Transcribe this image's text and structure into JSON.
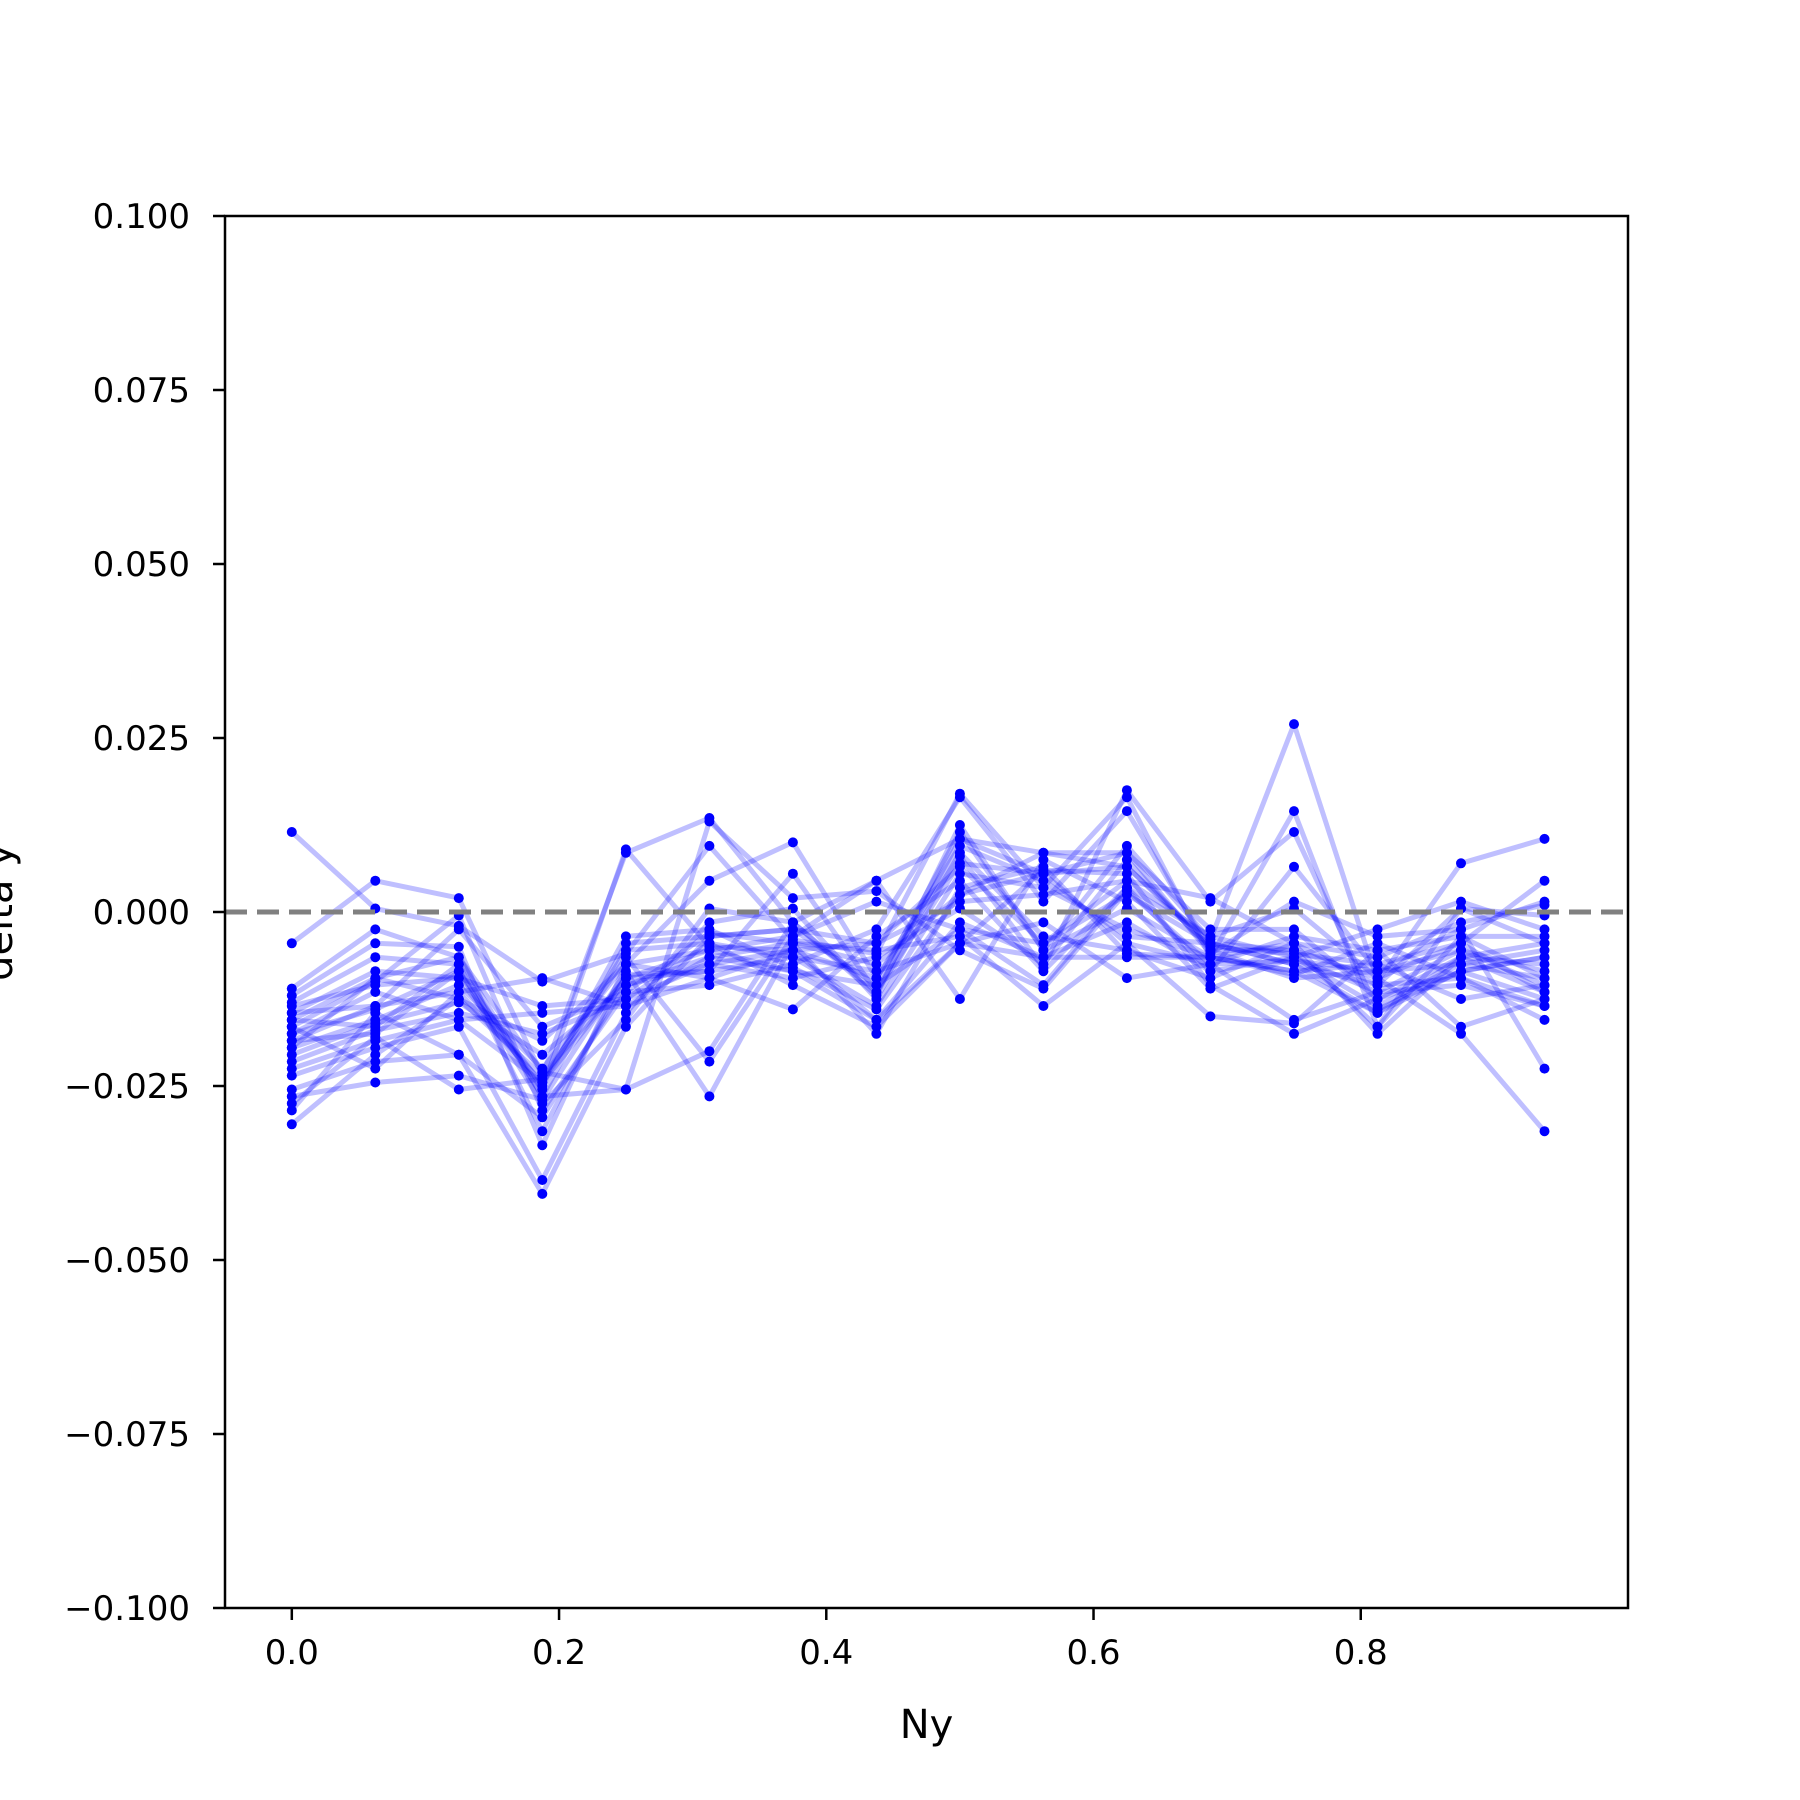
{
  "chart_data": {
    "type": "line",
    "title": "",
    "xlabel": "Ny",
    "ylabel": "delta y",
    "xlim": [
      -0.05,
      1.0
    ],
    "ylim": [
      -0.1,
      0.1
    ],
    "xticks": [
      0.0,
      0.2,
      0.4,
      0.6,
      0.8
    ],
    "xtick_labels": [
      "0.0",
      "0.2",
      "0.4",
      "0.6",
      "0.8"
    ],
    "yticks": [
      -0.1,
      -0.075,
      -0.05,
      -0.025,
      0.0,
      0.025,
      0.05,
      0.075,
      0.1
    ],
    "ytick_labels": [
      "−0.100",
      "−0.075",
      "−0.050",
      "−0.025",
      "0.000",
      "0.025",
      "0.050",
      "0.075",
      "0.100"
    ],
    "grid": false,
    "legend": false,
    "reference_line": {
      "y": 0.0,
      "style": "dashed",
      "color": "#808080"
    },
    "series_color": "#0000ff",
    "x": [
      0.0,
      0.0625,
      0.125,
      0.1875,
      0.25,
      0.3125,
      0.375,
      0.4375,
      0.5,
      0.5625,
      0.625,
      0.6875,
      0.75,
      0.8125,
      0.875,
      0.9375
    ],
    "series": [
      {
        "values": [
          0.0115,
          0.0005,
          -0.002,
          -0.01,
          -0.006,
          0.0095,
          -0.004,
          -0.006,
          0.017,
          0.0035,
          0.0165,
          -0.0065,
          0.0145,
          -0.0165,
          0.0005,
          -0.0005
        ]
      },
      {
        "values": [
          -0.0045,
          0.0045,
          0.002,
          -0.0235,
          0.0085,
          0.0135,
          -0.0015,
          -0.012,
          0.0125,
          -0.0055,
          0.0095,
          -0.004,
          0.027,
          -0.01,
          0.007,
          0.0105
        ]
      },
      {
        "values": [
          -0.011,
          -0.0025,
          -0.0065,
          -0.0265,
          -0.0255,
          -0.02,
          -0.0015,
          0.0045,
          0.0105,
          0.0085,
          0.0085,
          -0.006,
          0.0015,
          -0.0035,
          -0.0025,
          -0.0225
        ]
      },
      {
        "values": [
          -0.012,
          -0.0045,
          -0.005,
          -0.0335,
          -0.0075,
          0.0045,
          0.01,
          -0.0095,
          0.008,
          -0.008,
          0.0175,
          0.0015,
          0.0115,
          -0.014,
          -0.0085,
          -0.0125
        ]
      },
      {
        "values": [
          -0.013,
          -0.0065,
          -0.0075,
          -0.0315,
          -0.009,
          -0.0085,
          0.0055,
          -0.0115,
          0.007,
          0.0055,
          0.0065,
          -0.005,
          -0.006,
          -0.0075,
          -0.0045,
          0.0045
        ]
      },
      {
        "values": [
          -0.0145,
          -0.0085,
          -0.0095,
          -0.0255,
          0.009,
          -0.005,
          -0.0055,
          -0.0045,
          0.0015,
          0.0025,
          0.0045,
          0.002,
          -0.0045,
          -0.0065,
          -0.0015,
          0.001
        ]
      },
      {
        "values": [
          -0.0155,
          -0.0095,
          -0.0065,
          -0.023,
          -0.0255,
          0.013,
          0.002,
          0.003,
          -0.0055,
          -0.011,
          0.003,
          -0.0075,
          -0.007,
          -0.0085,
          -0.0075,
          -0.0055
        ]
      },
      {
        "values": [
          -0.0165,
          -0.01,
          -0.0005,
          -0.0285,
          -0.0115,
          -0.003,
          -0.0045,
          -0.0175,
          0.0035,
          0.0065,
          -0.006,
          -0.0065,
          -0.009,
          -0.0045,
          -0.0095,
          -0.0135
        ]
      },
      {
        "values": [
          -0.0175,
          -0.014,
          -0.0085,
          -0.025,
          -0.0035,
          -0.0025,
          -0.008,
          -0.014,
          0.0025,
          0.0055,
          -0.0045,
          -0.015,
          -0.016,
          -0.0055,
          -0.0035,
          -0.0035
        ]
      },
      {
        "values": [
          -0.0185,
          -0.0135,
          -0.0115,
          -0.0245,
          -0.0055,
          -0.0045,
          -0.0065,
          -0.0085,
          -0.0045,
          0.006,
          0.0055,
          -0.0105,
          -0.0175,
          -0.0125,
          -0.0065,
          -0.0045
        ]
      },
      {
        "values": [
          -0.0195,
          -0.0155,
          -0.0105,
          -0.0225,
          -0.0075,
          -0.0055,
          -0.0035,
          0.0015,
          -0.0025,
          -0.0045,
          0.0025,
          -0.0045,
          -0.0075,
          -0.0145,
          -0.0085,
          -0.0065
        ]
      },
      {
        "values": [
          -0.0205,
          -0.016,
          -0.013,
          -0.0205,
          -0.0105,
          -0.0065,
          -0.0085,
          -0.0155,
          -0.0015,
          -0.0065,
          -0.0015,
          -0.0085,
          -0.0065,
          -0.0115,
          -0.0055,
          -0.0085
        ]
      },
      {
        "values": [
          -0.0215,
          -0.017,
          -0.0145,
          -0.0175,
          -0.0125,
          -0.0075,
          -0.0095,
          -0.0065,
          0.0005,
          -0.0075,
          0.0075,
          -0.0055,
          -0.0055,
          -0.0165,
          -0.0035,
          -0.0095
        ]
      },
      {
        "values": [
          -0.0225,
          -0.0185,
          -0.0155,
          -0.0145,
          -0.0135,
          -0.0095,
          -0.014,
          -0.0035,
          0.0045,
          -0.0085,
          0.0035,
          -0.0035,
          0.0005,
          -0.0095,
          -0.0045,
          -0.0115
        ]
      },
      {
        "values": [
          -0.0235,
          -0.0195,
          -0.0165,
          -0.0385,
          -0.0145,
          -0.0015,
          0.0005,
          -0.0125,
          0.0085,
          -0.0035,
          -0.0055,
          -0.0095,
          -0.0045,
          -0.0105,
          -0.0095,
          -0.0155
        ]
      },
      {
        "values": [
          -0.0255,
          -0.0215,
          -0.0205,
          -0.0405,
          -0.0165,
          -0.0035,
          -0.0025,
          -0.0105,
          0.0115,
          -0.0055,
          0.0005,
          -0.0065,
          -0.0085,
          -0.0075,
          -0.0125,
          -0.0105
        ]
      },
      {
        "values": [
          -0.0265,
          -0.0245,
          -0.0235,
          -0.027,
          -0.0085,
          -0.0265,
          -0.0045,
          -0.0055,
          -0.0035,
          -0.0135,
          -0.0045,
          -0.0075,
          -0.0035,
          -0.0055,
          -0.0165,
          -0.0125
        ]
      },
      {
        "values": [
          -0.0275,
          -0.018,
          -0.0255,
          -0.024,
          -0.0065,
          -0.0215,
          -0.0035,
          0.0045,
          -0.0125,
          0.0075,
          0.0015,
          -0.011,
          -0.0065,
          -0.0025,
          0.0015,
          -0.0025
        ]
      },
      {
        "values": [
          -0.0285,
          -0.0145,
          -0.0205,
          -0.0295,
          -0.0105,
          -0.0075,
          -0.0055,
          -0.0095,
          0.0095,
          0.0045,
          -0.0035,
          -0.0045,
          -0.0055,
          -0.0095,
          -0.0175,
          -0.0315
        ]
      },
      {
        "values": [
          -0.0305,
          -0.0205,
          -0.0125,
          -0.0235,
          -0.0095,
          -0.0085,
          -0.0065,
          -0.0135,
          0.0055,
          0.0035,
          -0.0025,
          -0.0065,
          -0.0045,
          -0.0175,
          -0.0065,
          -0.0075
        ]
      },
      {
        "values": [
          -0.0145,
          -0.0135,
          -0.0025,
          -0.0165,
          -0.0115,
          -0.0105,
          -0.0075,
          -0.0025,
          0.0165,
          0.0015,
          0.0145,
          -0.0055,
          -0.0095,
          -0.0085,
          -0.0025,
          0.0015
        ]
      },
      {
        "values": [
          -0.0135,
          -0.0105,
          -0.0095,
          -0.0135,
          -0.0125,
          -0.0045,
          -0.0105,
          -0.0165,
          -0.0045,
          -0.0015,
          -0.0095,
          -0.0075,
          -0.0155,
          -0.0115,
          -0.0105,
          -0.0135
        ]
      },
      {
        "values": [
          -0.0155,
          -0.0165,
          -0.0075,
          -0.0265,
          -0.0045,
          -0.0035,
          -0.0025,
          -0.0045,
          0.0065,
          -0.0045,
          0.0045,
          -0.0035,
          -0.0065,
          -0.0135,
          -0.0075,
          -0.0095
        ]
      },
      {
        "values": [
          -0.0165,
          -0.0225,
          -0.0115,
          -0.0095,
          -0.0135,
          -0.0065,
          -0.0045,
          -0.0075,
          0.0025,
          0.0085,
          0.0065,
          -0.0045,
          -0.0075,
          -0.0105,
          0.0005,
          -0.0045
        ]
      },
      {
        "values": [
          -0.0175,
          -0.0115,
          -0.0155,
          -0.0245,
          -0.0095,
          -0.0055,
          -0.0085,
          -0.0105,
          -0.0025,
          -0.0105,
          0.0035,
          -0.0085,
          0.0065,
          -0.0085,
          -0.0055,
          -0.0105
        ]
      },
      {
        "values": [
          -0.0185,
          -0.0175,
          -0.0085,
          -0.0275,
          -0.0155,
          0.0005,
          -0.0015,
          -0.0115,
          0.0105,
          0.0055,
          0.0085,
          -0.0025,
          -0.0025,
          -0.0125,
          -0.0085,
          -0.0065
        ]
      },
      {
        "values": [
          -0.0195,
          -0.0095,
          -0.0125,
          -0.0185,
          -0.0075,
          -0.0095,
          -0.0055,
          -0.0155,
          -0.0045,
          -0.0065,
          -0.0065,
          -0.0065,
          -0.0085,
          -0.0145,
          -0.0065,
          -0.0115
        ]
      }
    ]
  }
}
